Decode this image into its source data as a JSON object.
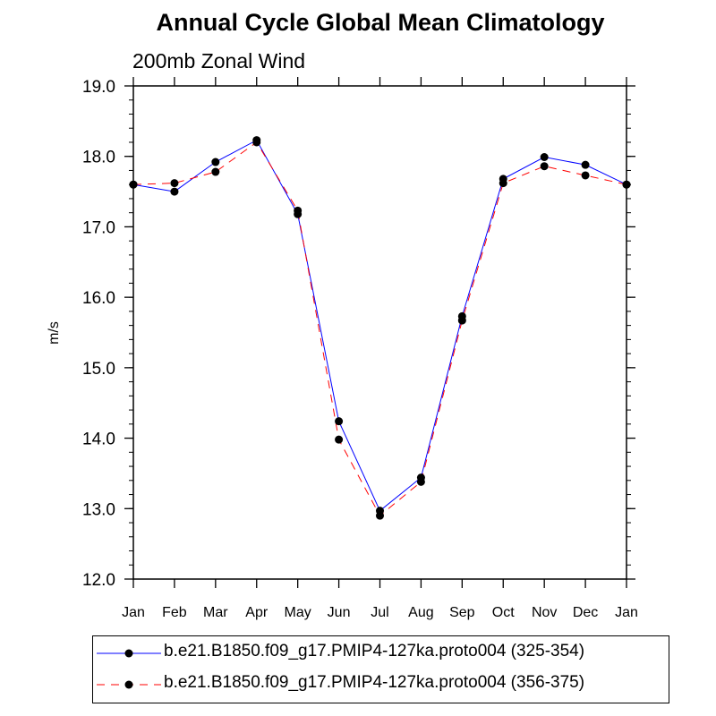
{
  "chart_data": {
    "type": "line",
    "title": "Annual Cycle Global Mean Climatology",
    "subtitle": "200mb Zonal Wind",
    "xlabel": "",
    "ylabel": "m/s",
    "categories": [
      "Jan",
      "Feb",
      "Mar",
      "Apr",
      "May",
      "Jun",
      "Jul",
      "Aug",
      "Sep",
      "Oct",
      "Nov",
      "Dec",
      "Jan"
    ],
    "ylim": [
      12.0,
      19.0
    ],
    "yticks": [
      "12.0",
      "13.0",
      "14.0",
      "15.0",
      "16.0",
      "17.0",
      "18.0",
      "19.0"
    ],
    "series": [
      {
        "name": "b.e21.B1850.f09_g17.PMIP4-127ka.proto004 (325-354)",
        "color": "#0000ff",
        "dash": "solid",
        "values": [
          17.6,
          17.5,
          17.92,
          18.23,
          17.18,
          14.24,
          12.97,
          13.44,
          15.73,
          17.68,
          17.99,
          17.88,
          17.6
        ]
      },
      {
        "name": "b.e21.B1850.f09_g17.PMIP4-127ka.proto004 (356-375)",
        "color": "#ff0000",
        "dash": "dashed",
        "values": [
          17.6,
          17.62,
          17.78,
          18.2,
          17.23,
          13.98,
          12.9,
          13.38,
          15.67,
          17.62,
          17.86,
          17.73,
          17.6
        ]
      }
    ],
    "legend_position": "bottom"
  }
}
